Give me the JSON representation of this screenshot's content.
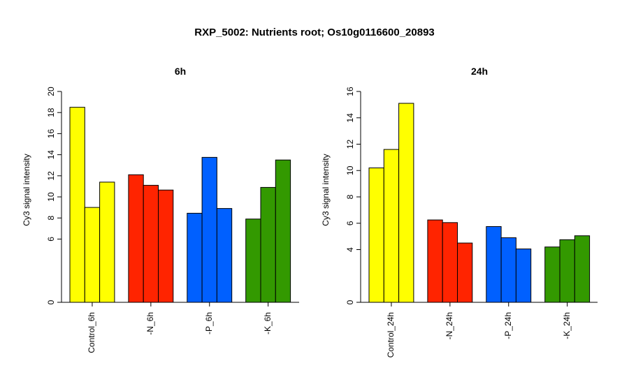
{
  "title": "RXP_5002: Nutrients root; Os10g0116600_20893",
  "chart_data": [
    {
      "type": "bar",
      "title": "6h",
      "ylabel": "Cy3 signal intensity",
      "ylim": [
        0,
        20
      ],
      "yticks": [
        0,
        6,
        8,
        10,
        12,
        14,
        16,
        18,
        20
      ],
      "categories": [
        "Control_6h",
        "-N_6h",
        "-P_6h",
        "-K_6h"
      ],
      "colors": [
        "#FFFF00",
        "#FF2400",
        "#0060FF",
        "#339900"
      ],
      "groups": [
        [
          18.5,
          9.0,
          11.4
        ],
        [
          12.1,
          11.1,
          10.65
        ],
        [
          8.45,
          13.75,
          8.9
        ],
        [
          7.9,
          10.9,
          13.5
        ]
      ]
    },
    {
      "type": "bar",
      "title": "24h",
      "ylabel": "Cy3 signal intensity",
      "ylim": [
        0,
        16
      ],
      "yticks": [
        0,
        4,
        6,
        8,
        10,
        12,
        14,
        16
      ],
      "categories": [
        "Control_24h",
        "-N_24h",
        "-P_24h",
        "-K_24h"
      ],
      "colors": [
        "#FFFF00",
        "#FF2400",
        "#0060FF",
        "#339900"
      ],
      "groups": [
        [
          10.2,
          11.6,
          15.1
        ],
        [
          6.25,
          6.05,
          4.5
        ],
        [
          5.75,
          4.9,
          4.05
        ],
        [
          4.2,
          4.75,
          5.05
        ]
      ]
    }
  ]
}
